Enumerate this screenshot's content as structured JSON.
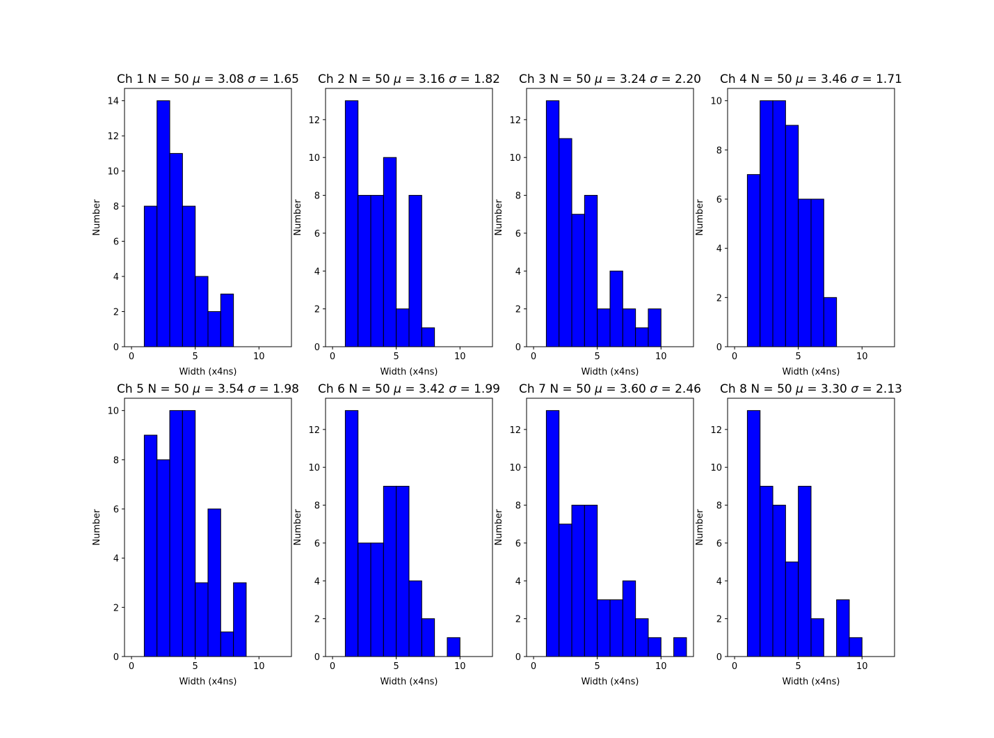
{
  "chart_data": [
    {
      "type": "bar",
      "title": "Ch 1  N = 50 μ = 3.08  σ = 1.65",
      "title_parts": [
        "Ch 1  N = 50 ",
        "μ",
        " = 3.08  ",
        "σ",
        " = 1.65"
      ],
      "xlabel": "Width (x4ns)",
      "ylabel": "Number",
      "xlim": [
        -0.55,
        12.55
      ],
      "ylim": [
        0,
        14.7
      ],
      "xticks": [
        0,
        5,
        10
      ],
      "yticks": [
        0,
        2,
        4,
        6,
        8,
        10,
        12,
        14
      ],
      "bins": [
        {
          "x0": 1,
          "x1": 2,
          "value": 8
        },
        {
          "x0": 2,
          "x1": 3,
          "value": 14
        },
        {
          "x0": 3,
          "x1": 4,
          "value": 11
        },
        {
          "x0": 4,
          "x1": 5,
          "value": 8
        },
        {
          "x0": 5,
          "x1": 6,
          "value": 4
        },
        {
          "x0": 6,
          "x1": 7,
          "value": 2
        },
        {
          "x0": 7,
          "x1": 8,
          "value": 3
        },
        {
          "x0": 8,
          "x1": 9,
          "value": 0
        },
        {
          "x0": 9,
          "x1": 10,
          "value": 0
        },
        {
          "x0": 10,
          "x1": 11,
          "value": 0
        },
        {
          "x0": 11,
          "x1": 12,
          "value": 0
        }
      ],
      "bar_color": "#0000ff",
      "edge_color": "#000000",
      "grid": false
    },
    {
      "type": "bar",
      "title": "Ch 2  N = 50 μ = 3.16  σ = 1.82",
      "title_parts": [
        "Ch 2  N = 50 ",
        "μ",
        " = 3.16  ",
        "σ",
        " = 1.82"
      ],
      "xlabel": "Width (x4ns)",
      "ylabel": "Number",
      "xlim": [
        -0.55,
        12.55
      ],
      "ylim": [
        0,
        13.65
      ],
      "xticks": [
        0,
        5,
        10
      ],
      "yticks": [
        0,
        2,
        4,
        6,
        8,
        10,
        12
      ],
      "bins": [
        {
          "x0": 1,
          "x1": 2,
          "value": 13
        },
        {
          "x0": 2,
          "x1": 3,
          "value": 8
        },
        {
          "x0": 3,
          "x1": 4,
          "value": 8
        },
        {
          "x0": 4,
          "x1": 5,
          "value": 10
        },
        {
          "x0": 5,
          "x1": 6,
          "value": 2
        },
        {
          "x0": 6,
          "x1": 7,
          "value": 8
        },
        {
          "x0": 7,
          "x1": 8,
          "value": 1
        },
        {
          "x0": 8,
          "x1": 9,
          "value": 0
        },
        {
          "x0": 9,
          "x1": 10,
          "value": 0
        },
        {
          "x0": 10,
          "x1": 11,
          "value": 0
        },
        {
          "x0": 11,
          "x1": 12,
          "value": 0
        }
      ],
      "bar_color": "#0000ff",
      "edge_color": "#000000",
      "grid": false
    },
    {
      "type": "bar",
      "title": "Ch 3  N = 50 μ = 3.24  σ = 2.20",
      "title_parts": [
        "Ch 3  N = 50 ",
        "μ",
        " = 3.24  ",
        "σ",
        " = 2.20"
      ],
      "xlabel": "Width (x4ns)",
      "ylabel": "Number",
      "xlim": [
        -0.55,
        12.55
      ],
      "ylim": [
        0,
        13.65
      ],
      "xticks": [
        0,
        5,
        10
      ],
      "yticks": [
        0,
        2,
        4,
        6,
        8,
        10,
        12
      ],
      "bins": [
        {
          "x0": 1,
          "x1": 2,
          "value": 13
        },
        {
          "x0": 2,
          "x1": 3,
          "value": 11
        },
        {
          "x0": 3,
          "x1": 4,
          "value": 7
        },
        {
          "x0": 4,
          "x1": 5,
          "value": 8
        },
        {
          "x0": 5,
          "x1": 6,
          "value": 2
        },
        {
          "x0": 6,
          "x1": 7,
          "value": 4
        },
        {
          "x0": 7,
          "x1": 8,
          "value": 2
        },
        {
          "x0": 8,
          "x1": 9,
          "value": 1
        },
        {
          "x0": 9,
          "x1": 10,
          "value": 2
        },
        {
          "x0": 10,
          "x1": 11,
          "value": 0
        },
        {
          "x0": 11,
          "x1": 12,
          "value": 0
        }
      ],
      "bar_color": "#0000ff",
      "edge_color": "#000000",
      "grid": false
    },
    {
      "type": "bar",
      "title": "Ch 4  N = 50 μ = 3.46  σ = 1.71",
      "title_parts": [
        "Ch 4  N = 50 ",
        "μ",
        " = 3.46  ",
        "σ",
        " = 1.71"
      ],
      "xlabel": "Width (x4ns)",
      "ylabel": "Number",
      "xlim": [
        -0.55,
        12.55
      ],
      "ylim": [
        0,
        10.5
      ],
      "xticks": [
        0,
        5,
        10
      ],
      "yticks": [
        0,
        2,
        4,
        6,
        8,
        10
      ],
      "bins": [
        {
          "x0": 1,
          "x1": 2,
          "value": 7
        },
        {
          "x0": 2,
          "x1": 3,
          "value": 10
        },
        {
          "x0": 3,
          "x1": 4,
          "value": 10
        },
        {
          "x0": 4,
          "x1": 5,
          "value": 9
        },
        {
          "x0": 5,
          "x1": 6,
          "value": 6
        },
        {
          "x0": 6,
          "x1": 7,
          "value": 6
        },
        {
          "x0": 7,
          "x1": 8,
          "value": 2
        },
        {
          "x0": 8,
          "x1": 9,
          "value": 0
        },
        {
          "x0": 9,
          "x1": 10,
          "value": 0
        },
        {
          "x0": 10,
          "x1": 11,
          "value": 0
        },
        {
          "x0": 11,
          "x1": 12,
          "value": 0
        }
      ],
      "bar_color": "#0000ff",
      "edge_color": "#000000",
      "grid": false
    },
    {
      "type": "bar",
      "title": "Ch 5  N = 50 μ = 3.54  σ = 1.98",
      "title_parts": [
        "Ch 5  N = 50 ",
        "μ",
        " = 3.54  ",
        "σ",
        " = 1.98"
      ],
      "xlabel": "Width (x4ns)",
      "ylabel": "Number",
      "xlim": [
        -0.55,
        12.55
      ],
      "ylim": [
        0,
        10.5
      ],
      "xticks": [
        0,
        5,
        10
      ],
      "yticks": [
        0,
        2,
        4,
        6,
        8,
        10
      ],
      "bins": [
        {
          "x0": 1,
          "x1": 2,
          "value": 9
        },
        {
          "x0": 2,
          "x1": 3,
          "value": 8
        },
        {
          "x0": 3,
          "x1": 4,
          "value": 10
        },
        {
          "x0": 4,
          "x1": 5,
          "value": 10
        },
        {
          "x0": 5,
          "x1": 6,
          "value": 3
        },
        {
          "x0": 6,
          "x1": 7,
          "value": 6
        },
        {
          "x0": 7,
          "x1": 8,
          "value": 1
        },
        {
          "x0": 8,
          "x1": 9,
          "value": 3
        },
        {
          "x0": 9,
          "x1": 10,
          "value": 0
        },
        {
          "x0": 10,
          "x1": 11,
          "value": 0
        },
        {
          "x0": 11,
          "x1": 12,
          "value": 0
        }
      ],
      "bar_color": "#0000ff",
      "edge_color": "#000000",
      "grid": false
    },
    {
      "type": "bar",
      "title": "Ch 6  N = 50 μ = 3.42  σ = 1.99",
      "title_parts": [
        "Ch 6  N = 50 ",
        "μ",
        " = 3.42  ",
        "σ",
        " = 1.99"
      ],
      "xlabel": "Width (x4ns)",
      "ylabel": "Number",
      "xlim": [
        -0.55,
        12.55
      ],
      "ylim": [
        0,
        13.65
      ],
      "xticks": [
        0,
        5,
        10
      ],
      "yticks": [
        0,
        2,
        4,
        6,
        8,
        10,
        12
      ],
      "bins": [
        {
          "x0": 1,
          "x1": 2,
          "value": 13
        },
        {
          "x0": 2,
          "x1": 3,
          "value": 6
        },
        {
          "x0": 3,
          "x1": 4,
          "value": 6
        },
        {
          "x0": 4,
          "x1": 5,
          "value": 9
        },
        {
          "x0": 5,
          "x1": 6,
          "value": 9
        },
        {
          "x0": 6,
          "x1": 7,
          "value": 4
        },
        {
          "x0": 7,
          "x1": 8,
          "value": 2
        },
        {
          "x0": 8,
          "x1": 9,
          "value": 0
        },
        {
          "x0": 9,
          "x1": 10,
          "value": 1
        },
        {
          "x0": 10,
          "x1": 11,
          "value": 0
        },
        {
          "x0": 11,
          "x1": 12,
          "value": 0
        }
      ],
      "bar_color": "#0000ff",
      "edge_color": "#000000",
      "grid": false
    },
    {
      "type": "bar",
      "title": "Ch 7  N = 50 μ = 3.60  σ = 2.46",
      "title_parts": [
        "Ch 7  N = 50 ",
        "μ",
        " = 3.60  ",
        "σ",
        " = 2.46"
      ],
      "xlabel": "Width (x4ns)",
      "ylabel": "Number",
      "xlim": [
        -0.55,
        12.55
      ],
      "ylim": [
        0,
        13.65
      ],
      "xticks": [
        0,
        5,
        10
      ],
      "yticks": [
        0,
        2,
        4,
        6,
        8,
        10,
        12
      ],
      "bins": [
        {
          "x0": 1,
          "x1": 2,
          "value": 13
        },
        {
          "x0": 2,
          "x1": 3,
          "value": 7
        },
        {
          "x0": 3,
          "x1": 4,
          "value": 8
        },
        {
          "x0": 4,
          "x1": 5,
          "value": 8
        },
        {
          "x0": 5,
          "x1": 6,
          "value": 3
        },
        {
          "x0": 6,
          "x1": 7,
          "value": 3
        },
        {
          "x0": 7,
          "x1": 8,
          "value": 4
        },
        {
          "x0": 8,
          "x1": 9,
          "value": 2
        },
        {
          "x0": 9,
          "x1": 10,
          "value": 1
        },
        {
          "x0": 10,
          "x1": 11,
          "value": 0
        },
        {
          "x0": 11,
          "x1": 12,
          "value": 1
        }
      ],
      "bar_color": "#0000ff",
      "edge_color": "#000000",
      "grid": false
    },
    {
      "type": "bar",
      "title": "Ch 8  N = 50 μ = 3.30  σ = 2.13",
      "title_parts": [
        "Ch 8  N = 50 ",
        "μ",
        " = 3.30  ",
        "σ",
        " = 2.13"
      ],
      "xlabel": "Width (x4ns)",
      "ylabel": "Number",
      "xlim": [
        -0.55,
        12.55
      ],
      "ylim": [
        0,
        13.65
      ],
      "xticks": [
        0,
        5,
        10
      ],
      "yticks": [
        0,
        2,
        4,
        6,
        8,
        10,
        12
      ],
      "bins": [
        {
          "x0": 1,
          "x1": 2,
          "value": 13
        },
        {
          "x0": 2,
          "x1": 3,
          "value": 9
        },
        {
          "x0": 3,
          "x1": 4,
          "value": 8
        },
        {
          "x0": 4,
          "x1": 5,
          "value": 5
        },
        {
          "x0": 5,
          "x1": 6,
          "value": 9
        },
        {
          "x0": 6,
          "x1": 7,
          "value": 2
        },
        {
          "x0": 7,
          "x1": 8,
          "value": 0
        },
        {
          "x0": 8,
          "x1": 9,
          "value": 3
        },
        {
          "x0": 9,
          "x1": 10,
          "value": 1
        },
        {
          "x0": 10,
          "x1": 11,
          "value": 0
        },
        {
          "x0": 11,
          "x1": 12,
          "value": 0
        }
      ],
      "bar_color": "#0000ff",
      "edge_color": "#000000",
      "grid": false
    }
  ]
}
